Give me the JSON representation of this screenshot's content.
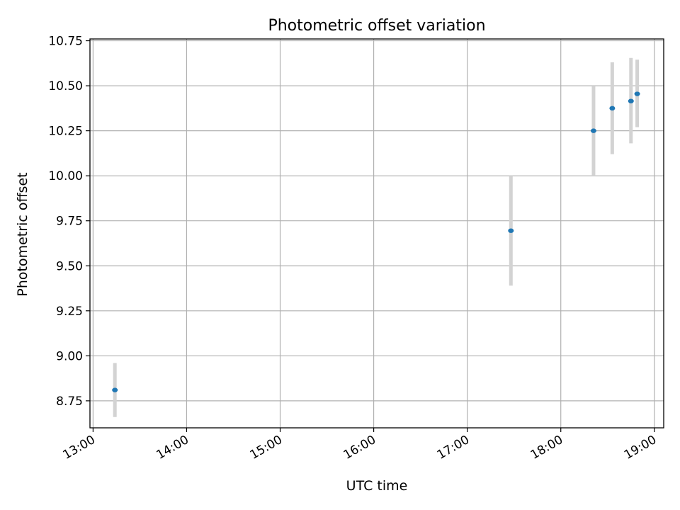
{
  "chart_data": {
    "type": "scatter",
    "title": "Photometric offset variation",
    "xlabel": "UTC time",
    "ylabel": "Photometric offset",
    "x_ticks": [
      "13:00",
      "14:00",
      "15:00",
      "16:00",
      "17:00",
      "18:00",
      "19:00"
    ],
    "y_ticks": [
      "8.75",
      "9.00",
      "9.25",
      "9.50",
      "9.75",
      "10.00",
      "10.25",
      "10.50",
      "10.75"
    ],
    "xlim": [
      "12:58",
      "19:06"
    ],
    "ylim": [
      8.6,
      10.76
    ],
    "grid": true,
    "points": [
      {
        "time": "13:14",
        "offset": 8.81,
        "err_low": 8.66,
        "err_high": 8.96
      },
      {
        "time": "17:28",
        "offset": 9.695,
        "err_low": 9.39,
        "err_high": 10.0
      },
      {
        "time": "18:21",
        "offset": 10.25,
        "err_low": 10.0,
        "err_high": 10.5
      },
      {
        "time": "18:33",
        "offset": 10.375,
        "err_low": 10.12,
        "err_high": 10.63
      },
      {
        "time": "18:45",
        "offset": 10.415,
        "err_low": 10.18,
        "err_high": 10.655
      },
      {
        "time": "18:49",
        "offset": 10.455,
        "err_low": 10.27,
        "err_high": 10.645
      }
    ],
    "colors": {
      "point": "#1f77b4",
      "errorbar": "#d3d3d3",
      "grid": "#b0b0b0"
    }
  }
}
